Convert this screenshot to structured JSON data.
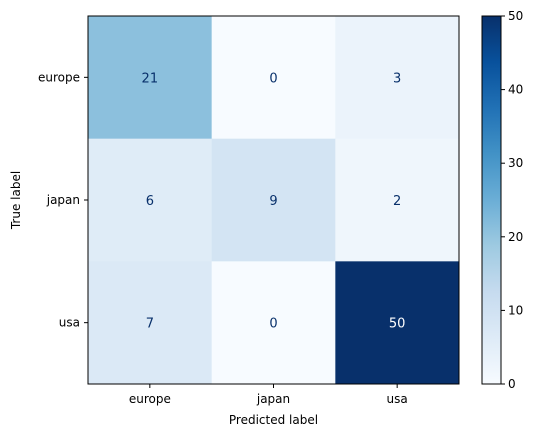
{
  "chart_data": {
    "type": "heatmap",
    "title": "",
    "xlabel": "Predicted label",
    "ylabel": "True label",
    "x_categories": [
      "europe",
      "japan",
      "usa"
    ],
    "y_categories": [
      "europe",
      "japan",
      "usa"
    ],
    "values": [
      [
        21,
        0,
        3
      ],
      [
        6,
        9,
        2
      ],
      [
        7,
        0,
        50
      ]
    ],
    "colormap": "Blues",
    "color_range": [
      0,
      50
    ],
    "colorbar_ticks": [
      0,
      10,
      20,
      30,
      40,
      50
    ],
    "grid": false
  }
}
